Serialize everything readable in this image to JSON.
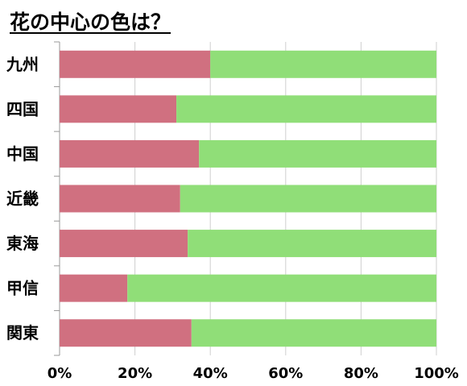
{
  "chart_data": {
    "type": "bar",
    "orientation": "horizontal",
    "stacked": true,
    "percent": true,
    "title": "花の中心の色は？",
    "xlabel": "",
    "ylabel": "",
    "categories": [
      "九州",
      "四国",
      "中国",
      "近畿",
      "東海",
      "甲信",
      "関東"
    ],
    "series": [
      {
        "values": [
          40,
          31,
          37,
          32,
          34,
          18,
          35
        ],
        "color": "#d07080"
      },
      {
        "values": [
          60,
          69,
          63,
          68,
          66,
          82,
          65
        ],
        "color": "#90de78"
      }
    ],
    "xlim": [
      0,
      100
    ],
    "x_ticks": [
      "0%",
      "20%",
      "40%",
      "60%",
      "80%",
      "100%"
    ],
    "grid": "vertical",
    "legend": "none"
  }
}
